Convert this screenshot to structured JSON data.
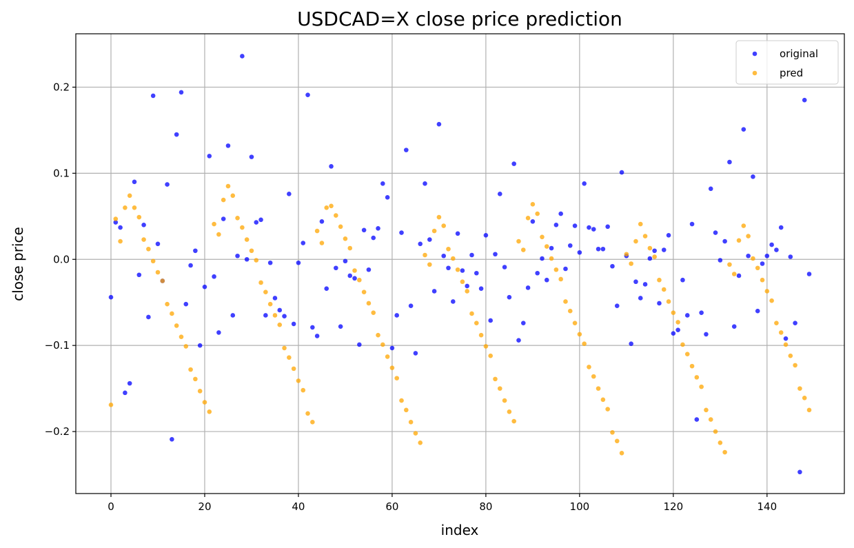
{
  "chart_data": {
    "type": "scatter",
    "title": "USDCAD=X close price prediction",
    "xlabel": "index",
    "ylabel": "close price",
    "xlim": [
      -7.5,
      156.5
    ],
    "ylim": [
      -0.272,
      0.262
    ],
    "xticks": [
      0,
      20,
      40,
      60,
      80,
      100,
      120,
      140
    ],
    "xtick_labels": [
      "0",
      "20",
      "40",
      "60",
      "80",
      "100",
      "120",
      "140"
    ],
    "yticks": [
      -0.2,
      -0.1,
      0.0,
      0.1,
      0.2
    ],
    "ytick_labels": [
      "−0.2",
      "−0.1",
      "0.0",
      "0.1",
      "0.2"
    ],
    "grid": true,
    "legend_position": "top-right",
    "series": [
      {
        "name": "original",
        "color": "#0000ff",
        "x": [
          0,
          1,
          2,
          3,
          4,
          5,
          6,
          7,
          8,
          9,
          10,
          11,
          12,
          13,
          14,
          15,
          16,
          17,
          18,
          19,
          20,
          21,
          22,
          23,
          24,
          25,
          26,
          27,
          28,
          29,
          30,
          31,
          32,
          33,
          34,
          35,
          36,
          37,
          38,
          39,
          40,
          41,
          42,
          43,
          44,
          45,
          46,
          47,
          48,
          49,
          50,
          51,
          52,
          53,
          54,
          55,
          56,
          57,
          58,
          59,
          60,
          61,
          62,
          63,
          64,
          65,
          66,
          67,
          68,
          69,
          70,
          71,
          72,
          73,
          74,
          75,
          76,
          77,
          78,
          79,
          80,
          81,
          82,
          83,
          84,
          85,
          86,
          87,
          88,
          89,
          90,
          91,
          92,
          93,
          94,
          95,
          96,
          97,
          98,
          99,
          100,
          101,
          102,
          103,
          104,
          105,
          106,
          107,
          108,
          109,
          110,
          111,
          112,
          113,
          114,
          115,
          116,
          117,
          118,
          119,
          120,
          121,
          122,
          123,
          124,
          125,
          126,
          127,
          128,
          129,
          130,
          131,
          132,
          133,
          134,
          135,
          136,
          137,
          138,
          139,
          140,
          141,
          142,
          143,
          144,
          145,
          146,
          147,
          148,
          149
        ],
        "y": [
          -0.044,
          0.043,
          0.037,
          -0.155,
          -0.144,
          0.09,
          -0.018,
          0.04,
          -0.067,
          0.19,
          0.018,
          -0.025,
          0.087,
          -0.209,
          0.145,
          0.194,
          -0.052,
          -0.007,
          0.01,
          -0.1,
          -0.032,
          0.12,
          -0.02,
          -0.085,
          0.047,
          0.132,
          -0.065,
          0.004,
          0.236,
          0.0,
          0.119,
          0.043,
          0.046,
          -0.065,
          -0.004,
          -0.045,
          -0.059,
          -0.066,
          0.076,
          -0.075,
          -0.004,
          0.019,
          0.191,
          -0.079,
          -0.089,
          0.044,
          -0.034,
          0.108,
          -0.01,
          -0.078,
          -0.002,
          -0.019,
          -0.022,
          -0.099,
          0.034,
          -0.012,
          0.025,
          0.036,
          0.088,
          0.072,
          -0.103,
          -0.065,
          0.031,
          0.127,
          -0.054,
          -0.109,
          0.018,
          0.088,
          0.023,
          -0.037,
          0.157,
          0.004,
          -0.01,
          -0.049,
          0.03,
          -0.013,
          -0.031,
          0.005,
          -0.016,
          -0.034,
          0.028,
          -0.071,
          0.006,
          0.076,
          -0.009,
          -0.044,
          0.111,
          -0.094,
          -0.074,
          -0.033,
          0.044,
          -0.016,
          0.001,
          -0.024,
          0.013,
          0.04,
          0.053,
          -0.011,
          0.016,
          0.039,
          0.008,
          0.088,
          0.037,
          0.035,
          0.012,
          0.012,
          0.038,
          -0.008,
          -0.054,
          0.101,
          0.004,
          -0.098,
          -0.026,
          -0.045,
          -0.029,
          0.001,
          0.01,
          -0.051,
          0.011,
          0.028,
          -0.086,
          -0.082,
          -0.024,
          -0.065,
          0.041,
          -0.186,
          -0.062,
          -0.087,
          0.082,
          0.031,
          -0.001,
          0.021,
          0.113,
          -0.078,
          -0.019,
          0.151,
          0.004,
          0.096,
          -0.06,
          -0.005,
          0.004,
          0.017,
          0.011,
          0.037,
          -0.092,
          0.003,
          -0.074,
          -0.247,
          0.185,
          -0.017
        ]
      },
      {
        "name": "pred",
        "color": "#ffa500",
        "x": [
          0,
          1,
          2,
          3,
          4,
          5,
          6,
          7,
          8,
          9,
          10,
          11,
          12,
          13,
          14,
          15,
          16,
          17,
          18,
          19,
          20,
          21,
          22,
          23,
          24,
          25,
          26,
          27,
          28,
          29,
          30,
          31,
          32,
          33,
          34,
          35,
          36,
          37,
          38,
          39,
          40,
          41,
          42,
          43,
          44,
          45,
          46,
          47,
          48,
          49,
          50,
          51,
          52,
          53,
          54,
          55,
          56,
          57,
          58,
          59,
          60,
          61,
          62,
          63,
          64,
          65,
          66,
          67,
          68,
          69,
          70,
          71,
          72,
          73,
          74,
          75,
          76,
          77,
          78,
          79,
          80,
          81,
          82,
          83,
          84,
          85,
          86,
          87,
          88,
          89,
          90,
          91,
          92,
          93,
          94,
          95,
          96,
          97,
          98,
          99,
          100,
          101,
          102,
          103,
          104,
          105,
          106,
          107,
          108,
          109,
          110,
          111,
          112,
          113,
          114,
          115,
          116,
          117,
          118,
          119,
          120,
          121,
          122,
          123,
          124,
          125,
          126,
          127,
          128,
          129,
          130,
          131,
          132,
          133,
          134,
          135,
          136,
          137,
          138,
          139,
          140,
          141,
          142,
          143,
          144,
          145,
          146,
          147,
          148,
          149
        ],
        "y": [
          -0.169,
          0.047,
          0.021,
          0.06,
          0.074,
          0.06,
          0.049,
          0.023,
          0.012,
          -0.002,
          -0.015,
          -0.025,
          -0.052,
          -0.063,
          -0.077,
          -0.09,
          -0.101,
          -0.128,
          -0.139,
          -0.153,
          -0.166,
          -0.177,
          0.041,
          0.029,
          0.069,
          0.085,
          0.074,
          0.048,
          0.037,
          0.023,
          0.01,
          -0.001,
          -0.027,
          -0.038,
          -0.052,
          -0.065,
          -0.076,
          -0.103,
          -0.114,
          -0.127,
          -0.141,
          -0.152,
          -0.179,
          -0.189,
          0.033,
          0.019,
          0.06,
          0.062,
          0.051,
          0.038,
          0.024,
          0.013,
          -0.013,
          -0.024,
          -0.038,
          -0.051,
          -0.062,
          -0.088,
          -0.099,
          -0.113,
          -0.126,
          -0.138,
          -0.164,
          -0.175,
          -0.189,
          -0.202,
          -0.213,
          0.005,
          -0.006,
          0.033,
          0.049,
          0.039,
          0.012,
          0.001,
          -0.012,
          -0.026,
          -0.037,
          -0.063,
          -0.074,
          -0.088,
          -0.101,
          -0.112,
          -0.139,
          -0.15,
          -0.164,
          -0.177,
          -0.188,
          0.021,
          0.011,
          0.048,
          0.064,
          0.053,
          0.026,
          0.015,
          0.001,
          -0.012,
          -0.023,
          -0.049,
          -0.06,
          -0.074,
          -0.087,
          -0.098,
          -0.125,
          -0.136,
          -0.15,
          -0.163,
          -0.174,
          -0.201,
          -0.211,
          -0.225,
          0.006,
          -0.005,
          0.021,
          0.041,
          0.027,
          0.013,
          0.003,
          -0.024,
          -0.035,
          -0.049,
          -0.062,
          -0.073,
          -0.099,
          -0.11,
          -0.124,
          -0.137,
          -0.148,
          -0.175,
          -0.186,
          -0.2,
          -0.213,
          -0.224,
          -0.006,
          -0.017,
          0.022,
          0.039,
          0.027,
          0.001,
          -0.01,
          -0.024,
          -0.037,
          -0.048,
          -0.074,
          -0.085,
          -0.099,
          -0.112,
          -0.123,
          -0.15,
          -0.161,
          -0.175
        ]
      }
    ]
  }
}
